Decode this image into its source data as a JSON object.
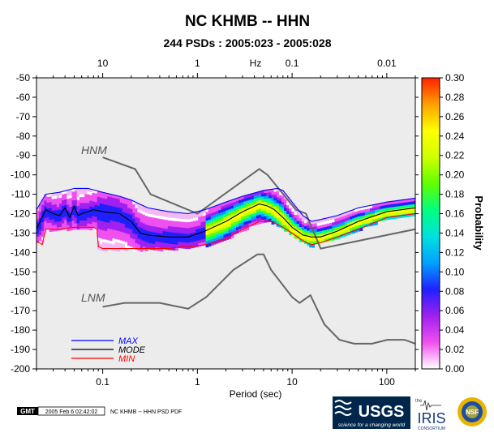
{
  "chart_data": {
    "type": "heatmap",
    "title": "NC KHMB -- HHN",
    "subtitle": "244 PSDs : 2005:023 - 2005:028",
    "xlabel": "Period (sec)",
    "x_top_label": "Hz",
    "x_scale": "log",
    "xlim": [
      0.02,
      200
    ],
    "ylim": [
      -200,
      -50
    ],
    "x_ticks_bottom": [
      {
        "value": 0.1,
        "label": "0.1"
      },
      {
        "value": 1,
        "label": "1"
      },
      {
        "value": 10,
        "label": "10"
      },
      {
        "value": 100,
        "label": "100"
      }
    ],
    "x_ticks_top": [
      {
        "value": 0.1,
        "label": "10"
      },
      {
        "value": 1,
        "label": "1"
      },
      {
        "value": 10,
        "label": "0.1"
      },
      {
        "value": 100,
        "label": "0.01"
      }
    ],
    "y_ticks": [
      "-50",
      "-60",
      "-70",
      "-80",
      "-90",
      "-100",
      "-110",
      "-120",
      "-130",
      "-140",
      "-150",
      "-160",
      "-170",
      "-180",
      "-190",
      "-200"
    ],
    "colorbar": {
      "label": "Probability",
      "range": [
        0,
        0.3
      ],
      "ticks": [
        "0.00",
        "0.02",
        "0.04",
        "0.06",
        "0.08",
        "0.10",
        "0.12",
        "0.14",
        "0.16",
        "0.18",
        "0.20",
        "0.22",
        "0.24",
        "0.26",
        "0.28",
        "0.30"
      ],
      "colors": [
        "#ffffff",
        "#f050f0",
        "#a020f0",
        "#2020ff",
        "#00a0ff",
        "#00e0e0",
        "#00ff80",
        "#60ff00",
        "#d0ff00",
        "#ffff00",
        "#ffa000",
        "#ff2000"
      ]
    },
    "reference_models": [
      {
        "name": "HNM",
        "points": [
          [
            0.1,
            -91
          ],
          [
            0.22,
            -97
          ],
          [
            0.32,
            -110
          ],
          [
            1.0,
            -120
          ],
          [
            4.5,
            -97
          ],
          [
            5.5,
            -100
          ],
          [
            11,
            -118
          ],
          [
            14,
            -120
          ],
          [
            20,
            -138
          ],
          [
            200,
            -128
          ]
        ]
      },
      {
        "name": "LNM",
        "points": [
          [
            0.1,
            -168
          ],
          [
            0.17,
            -166
          ],
          [
            0.4,
            -166
          ],
          [
            0.8,
            -169
          ],
          [
            1.24,
            -163
          ],
          [
            2.4,
            -149
          ],
          [
            4.3,
            -141
          ],
          [
            5.0,
            -141
          ],
          [
            6.0,
            -149
          ],
          [
            10,
            -163
          ],
          [
            12,
            -166
          ],
          [
            15.6,
            -162
          ],
          [
            21.9,
            -177
          ],
          [
            31.6,
            -185
          ],
          [
            45,
            -187
          ],
          [
            70,
            -187
          ],
          [
            101,
            -185
          ],
          [
            154,
            -185
          ],
          [
            200,
            -187
          ]
        ]
      }
    ],
    "series": [
      {
        "name": "MAX",
        "color": "#0000ff",
        "points": [
          [
            0.02,
            -118
          ],
          [
            0.025,
            -110
          ],
          [
            0.035,
            -109
          ],
          [
            0.05,
            -107
          ],
          [
            0.07,
            -107
          ],
          [
            0.1,
            -109
          ],
          [
            0.15,
            -111
          ],
          [
            0.2,
            -113
          ],
          [
            0.3,
            -117
          ],
          [
            0.5,
            -119
          ],
          [
            0.8,
            -120
          ],
          [
            1.2,
            -118
          ],
          [
            2,
            -114
          ],
          [
            3,
            -111
          ],
          [
            5,
            -108
          ],
          [
            7,
            -107
          ],
          [
            8,
            -108
          ],
          [
            10,
            -114
          ],
          [
            13,
            -121
          ],
          [
            16,
            -124
          ],
          [
            20,
            -123
          ],
          [
            30,
            -121
          ],
          [
            50,
            -117
          ],
          [
            100,
            -114
          ],
          [
            200,
            -112
          ]
        ]
      },
      {
        "name": "MODE",
        "color": "#000000",
        "points": [
          [
            0.02,
            -128
          ],
          [
            0.025,
            -118
          ],
          [
            0.03,
            -120
          ],
          [
            0.035,
            -121
          ],
          [
            0.04,
            -117
          ],
          [
            0.045,
            -122
          ],
          [
            0.05,
            -116
          ],
          [
            0.055,
            -121
          ],
          [
            0.06,
            -120
          ],
          [
            0.07,
            -119
          ],
          [
            0.08,
            -118
          ],
          [
            0.1,
            -119
          ],
          [
            0.15,
            -120
          ],
          [
            0.2,
            -124
          ],
          [
            0.25,
            -130
          ],
          [
            0.3,
            -131
          ],
          [
            0.5,
            -132
          ],
          [
            0.8,
            -132
          ],
          [
            1.2,
            -129
          ],
          [
            2,
            -124
          ],
          [
            3,
            -119
          ],
          [
            4.5,
            -115
          ],
          [
            5.5,
            -116
          ],
          [
            6.5,
            -118
          ],
          [
            8,
            -122
          ],
          [
            10,
            -127
          ],
          [
            13,
            -131
          ],
          [
            16,
            -132
          ],
          [
            20,
            -132
          ],
          [
            30,
            -129
          ],
          [
            50,
            -124
          ],
          [
            100,
            -119
          ],
          [
            200,
            -117
          ]
        ]
      },
      {
        "name": "MIN",
        "color": "#ff0000",
        "points": [
          [
            0.02,
            -134
          ],
          [
            0.023,
            -136
          ],
          [
            0.025,
            -128
          ],
          [
            0.035,
            -128
          ],
          [
            0.05,
            -127
          ],
          [
            0.08,
            -127
          ],
          [
            0.087,
            -128
          ],
          [
            0.09,
            -137
          ],
          [
            0.1,
            -138
          ],
          [
            0.2,
            -138
          ],
          [
            0.3,
            -138
          ],
          [
            0.5,
            -138
          ],
          [
            0.7,
            -137
          ],
          [
            0.9,
            -137
          ],
          [
            1.2,
            -136
          ],
          [
            2,
            -133
          ],
          [
            3,
            -128
          ],
          [
            4.5,
            -124
          ],
          [
            6,
            -124
          ],
          [
            8,
            -127
          ],
          [
            10,
            -130
          ],
          [
            13,
            -134
          ],
          [
            16,
            -136
          ],
          [
            20,
            -135
          ],
          [
            30,
            -132
          ],
          [
            50,
            -128
          ],
          [
            100,
            -122
          ],
          [
            200,
            -120
          ]
        ]
      }
    ],
    "legend": {
      "placement": "bottom-left",
      "items": [
        "MAX",
        "MODE",
        "MIN"
      ]
    },
    "grid": false
  },
  "footer": {
    "gmt_label": "GMT",
    "timestamp": "2005 Feb  6 02:42:02",
    "caption": "NC KHMB -- HHN PSD PDF",
    "usgs_logo_text": "USGS",
    "usgs_tagline": "science for a changing world",
    "iris_the": "the",
    "iris_name": "IRIS",
    "iris_sub": "CONSORTIUM",
    "nsf_label": "NSF"
  }
}
